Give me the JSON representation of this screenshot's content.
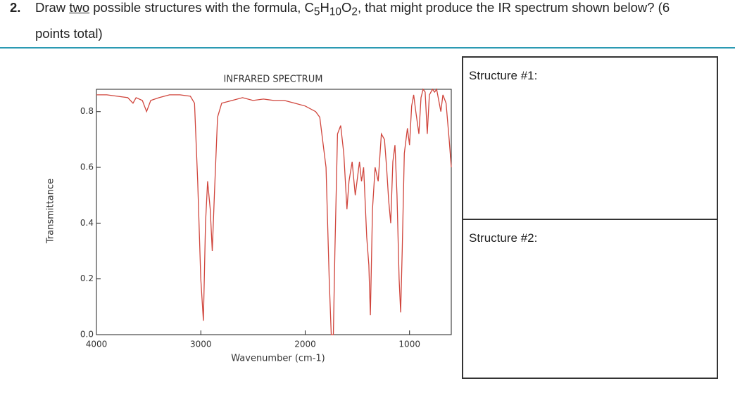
{
  "question": {
    "number": "2.",
    "text_before": "Draw ",
    "emphasis": "two",
    "text_middle": " possible structures with the formula, ",
    "formula": [
      "C",
      "5",
      "H",
      "10",
      "O",
      "2"
    ],
    "text_after": ", that might produce the IR spectrum shown below? (6 points total)"
  },
  "chart_data": {
    "type": "line",
    "title": "INFRARED SPECTRUM",
    "x_label": "Wavenumber (cm-1)",
    "y_label": "Transmittance",
    "xlim": [
      4000,
      600
    ],
    "ylim": [
      0,
      0.88
    ],
    "xticks": [
      4000,
      3000,
      2000,
      1000
    ],
    "yticks": [
      {
        "value": 0,
        "label": "0.0"
      },
      0.2,
      0.4,
      0.6,
      0.8
    ],
    "grid": false,
    "series": [
      {
        "color": "#d0453c",
        "x": [
          4000,
          3900,
          3800,
          3700,
          3650,
          3620,
          3560,
          3520,
          3480,
          3400,
          3300,
          3200,
          3100,
          3060,
          3030,
          3000,
          2975,
          2955,
          2935,
          2910,
          2890,
          2870,
          2840,
          2800,
          2700,
          2600,
          2500,
          2400,
          2300,
          2200,
          2100,
          2000,
          1900,
          1860,
          1800,
          1770,
          1750,
          1730,
          1715,
          1690,
          1660,
          1630,
          1600,
          1580,
          1550,
          1520,
          1480,
          1460,
          1440,
          1410,
          1390,
          1375,
          1355,
          1330,
          1300,
          1270,
          1240,
          1220,
          1200,
          1180,
          1160,
          1140,
          1120,
          1100,
          1085,
          1070,
          1050,
          1020,
          1000,
          980,
          960,
          940,
          910,
          890,
          870,
          850,
          830,
          810,
          780,
          760,
          740,
          700,
          680,
          650,
          620,
          600
        ],
        "values": [
          0.86,
          0.86,
          0.855,
          0.85,
          0.83,
          0.85,
          0.84,
          0.8,
          0.84,
          0.85,
          0.86,
          0.86,
          0.855,
          0.83,
          0.55,
          0.2,
          0.05,
          0.4,
          0.55,
          0.45,
          0.3,
          0.5,
          0.78,
          0.83,
          0.84,
          0.85,
          0.84,
          0.845,
          0.84,
          0.84,
          0.83,
          0.82,
          0.8,
          0.78,
          0.6,
          0.2,
          0.0,
          0.0,
          0.3,
          0.72,
          0.75,
          0.65,
          0.45,
          0.55,
          0.62,
          0.5,
          0.62,
          0.55,
          0.6,
          0.35,
          0.25,
          0.07,
          0.45,
          0.6,
          0.55,
          0.72,
          0.7,
          0.6,
          0.48,
          0.4,
          0.62,
          0.68,
          0.5,
          0.2,
          0.08,
          0.3,
          0.65,
          0.74,
          0.68,
          0.82,
          0.86,
          0.8,
          0.72,
          0.85,
          0.88,
          0.87,
          0.72,
          0.86,
          0.88,
          0.87,
          0.88,
          0.8,
          0.86,
          0.83,
          0.7,
          0.6
        ]
      }
    ]
  },
  "structures": [
    "Structure #1:",
    "Structure #2:"
  ]
}
